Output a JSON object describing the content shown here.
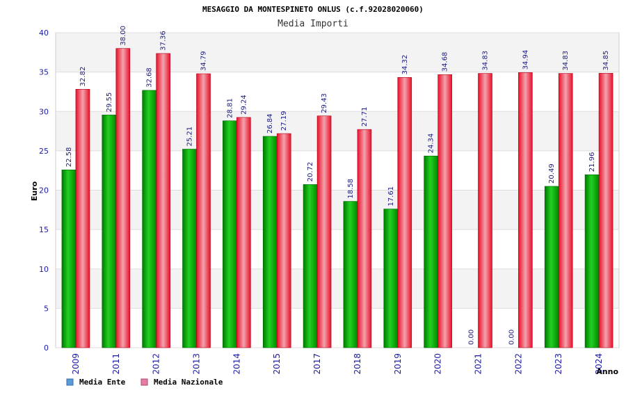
{
  "chart_data": {
    "type": "bar",
    "title": "MESAGGIO DA MONTESPINETO ONLUS (c.f.92028020060)",
    "subtitle": "Media Importi",
    "xlabel": "Anno",
    "ylabel": "Euro",
    "ylim": [
      0,
      40
    ],
    "yticks": [
      0,
      5,
      10,
      15,
      20,
      25,
      30,
      35,
      40
    ],
    "grid": true,
    "legend_position": "bottom-left",
    "categories": [
      "2009",
      "2011",
      "2012",
      "2013",
      "2014",
      "2015",
      "2017",
      "2018",
      "2019",
      "2020",
      "2021",
      "2022",
      "2023",
      "2024"
    ],
    "series": [
      {
        "name": "Media Ente",
        "legend_color": "#5b9bd5",
        "bar_color": "#00b000",
        "values": [
          22.58,
          29.55,
          32.68,
          25.21,
          28.81,
          26.84,
          20.72,
          18.58,
          17.61,
          24.34,
          0.0,
          0.0,
          20.49,
          21.96
        ],
        "labels": [
          "22.58",
          "29.55",
          "32.68",
          "25.21",
          "28.81",
          "26.84",
          "20.72",
          "18.58",
          "17.61",
          "24.34",
          "0.00",
          "0.00",
          "20.49",
          "21.96"
        ]
      },
      {
        "name": "Media Nazionale",
        "legend_color": "#e87ca4",
        "bar_color": "#e8102a",
        "values": [
          32.82,
          38.0,
          37.36,
          34.79,
          29.24,
          27.19,
          29.43,
          27.71,
          34.32,
          34.68,
          34.83,
          34.94,
          34.83,
          34.85
        ],
        "labels": [
          "32.82",
          "38.00",
          "37.36",
          "34.79",
          "29.24",
          "27.19",
          "29.43",
          "27.71",
          "34.32",
          "34.68",
          "34.83",
          "34.94",
          "34.83",
          "34.85"
        ]
      }
    ]
  }
}
